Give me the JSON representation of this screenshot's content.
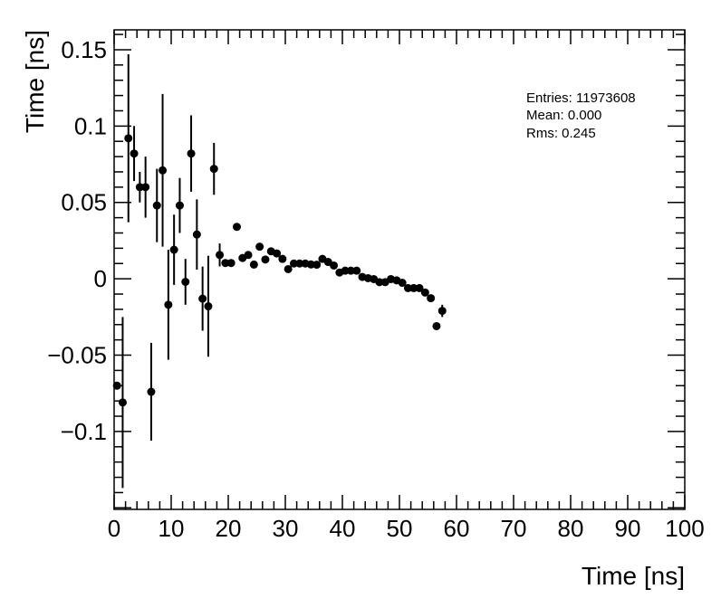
{
  "chart_data": {
    "type": "scatter",
    "title": "",
    "xlabel": "Time [ns]",
    "ylabel": "Time [ns]",
    "xlim": [
      0,
      100
    ],
    "ylim": [
      -0.151,
      0.163
    ],
    "x_ticks": [
      0,
      10,
      20,
      30,
      40,
      50,
      60,
      70,
      80,
      90,
      100
    ],
    "x_tick_labels": [
      "0",
      "10",
      "20",
      "30",
      "40",
      "50",
      "60",
      "70",
      "80",
      "90",
      "100"
    ],
    "y_ticks": [
      0.15,
      0.1,
      0.05,
      0,
      -0.05,
      -0.1
    ],
    "y_tick_labels": [
      "0.15",
      "0.1",
      "0.05",
      "0",
      "−0.05",
      "−0.1"
    ],
    "grid": false,
    "marker_color": "#000000",
    "stats": {
      "entries": "Entries: 11973608",
      "mean": "Mean: 0.000",
      "rms": "Rms: 0.245"
    },
    "x": [
      0.5,
      1.5,
      2.5,
      3.5,
      4.5,
      5.5,
      6.5,
      7.5,
      8.5,
      9.5,
      10.5,
      11.5,
      12.5,
      13.5,
      14.5,
      15.5,
      16.5,
      17.5,
      18.5,
      19.5,
      20.5,
      21.5,
      22.5,
      23.5,
      24.5,
      25.5,
      26.5,
      27.5,
      28.5,
      29.5,
      30.5,
      31.5,
      32.5,
      33.5,
      34.5,
      35.5,
      36.5,
      37.5,
      38.5,
      39.5,
      40.5,
      41.5,
      42.5,
      43.5,
      44.5,
      45.5,
      46.5,
      47.5,
      48.5,
      49.5,
      50.5,
      51.5,
      52.5,
      53.5,
      54.5,
      55.5,
      56.5,
      57.5
    ],
    "y": [
      -0.07,
      -0.081,
      0.092,
      0.082,
      0.06,
      0.06,
      -0.074,
      0.048,
      0.071,
      -0.017,
      0.019,
      0.048,
      -0.002,
      0.082,
      0.029,
      -0.013,
      -0.018,
      0.072,
      0.0156,
      0.0103,
      0.0103,
      0.034,
      0.0136,
      0.0156,
      0.0093,
      0.021,
      0.0126,
      0.018,
      0.0166,
      0.013,
      0.0063,
      0.01,
      0.01,
      0.01,
      0.0094,
      0.0092,
      0.013,
      0.011,
      0.0087,
      0.0041,
      0.0053,
      0.0053,
      0.0053,
      0.0012,
      0.0004,
      -0.0002,
      -0.0022,
      -0.0022,
      -0.0002,
      -0.001,
      -0.0026,
      -0.0061,
      -0.0061,
      -0.0061,
      -0.009,
      -0.0127,
      -0.031,
      -0.021
    ],
    "y_err": [
      0.001,
      0.056,
      0.055,
      0.018,
      0.01,
      0.02,
      0.032,
      0.024,
      0.05,
      0.036,
      0.023,
      0.018,
      0.015,
      0.025,
      0.023,
      0.021,
      0.033,
      0.017,
      0.0075,
      0.001,
      0.001,
      0.001,
      0.001,
      0.001,
      0.001,
      0.001,
      0.001,
      0.001,
      0.001,
      0.001,
      0.001,
      0.001,
      0.001,
      0.001,
      0.001,
      0.001,
      0.001,
      0.001,
      0.001,
      0.001,
      0.001,
      0.001,
      0.001,
      0.001,
      0.001,
      0.001,
      0.001,
      0.001,
      0.001,
      0.001,
      0.001,
      0.001,
      0.001,
      0.001,
      0.001,
      0.001,
      0.001,
      0.004
    ]
  }
}
